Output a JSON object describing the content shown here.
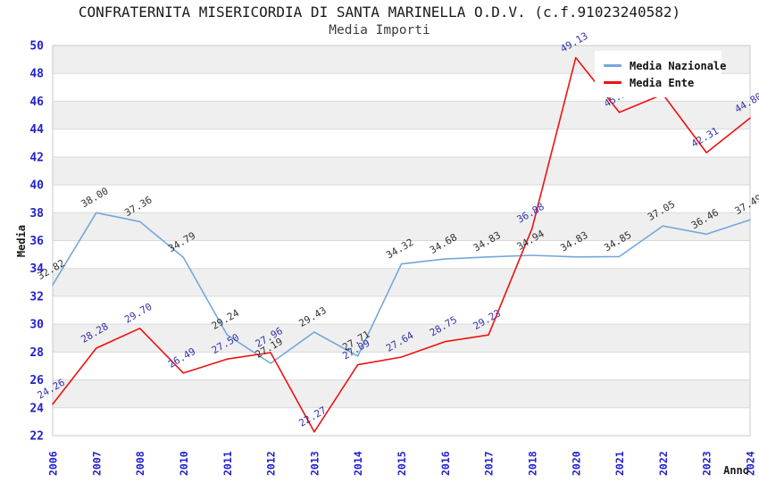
{
  "chart_data": {
    "type": "line",
    "title": "CONFRATERNITA MISERICORDIA DI SANTA MARINELLA O.D.V. (c.f.91023240582)",
    "subtitle": "Media Importi",
    "xlabel": "Anno",
    "ylabel": "Media",
    "ylim": [
      22,
      50
    ],
    "ytick_step": 2,
    "x_categories": [
      "2006",
      "2007",
      "2008",
      "2010",
      "2011",
      "2012",
      "2013",
      "2014",
      "2015",
      "2016",
      "2017",
      "2018",
      "2020",
      "2021",
      "2022",
      "2023",
      "2024"
    ],
    "series": [
      {
        "name": "Media Nazionale",
        "line_color": "#74a7dd",
        "label_color": "#333333",
        "values": [
          32.82,
          38.0,
          37.36,
          34.79,
          29.24,
          27.19,
          29.43,
          27.71,
          34.32,
          34.68,
          34.83,
          34.94,
          34.83,
          34.85,
          37.05,
          36.46,
          37.49
        ],
        "point_labels": [
          "32.82",
          "38.00",
          "37.36",
          "34.79",
          "29.24",
          "27.19",
          "29.43",
          "27.71",
          "34.32",
          "34.68",
          "34.83",
          "34.94",
          "34.83",
          "34.85",
          "37.05",
          "36.46",
          "37.49"
        ]
      },
      {
        "name": "Media Ente",
        "line_color": "#ee1111",
        "label_color": "#3333aa",
        "values": [
          24.26,
          28.28,
          29.7,
          26.49,
          27.5,
          27.96,
          22.27,
          27.09,
          27.64,
          28.75,
          29.23,
          36.88,
          49.13,
          45.2,
          46.5,
          42.31,
          44.8
        ],
        "point_labels": [
          "24.26",
          "28.28",
          "29.70",
          "26.49",
          "27.50",
          "27.96",
          "22.27",
          "27.09",
          "27.64",
          "28.75",
          "29.23",
          "36.88",
          "49.13",
          "45.20",
          null,
          "42.31",
          "44.80"
        ]
      }
    ],
    "legend_position": "top-right",
    "grid": "horizontal gridlines with alternating white/gray bands",
    "colors": {
      "axis_tick_label": "#2222cc",
      "band_gray": "#efefef",
      "band_white": "#ffffff",
      "gridline": "#d9d9d9",
      "plot_border": "#c8c8c8",
      "axis_title": "#1a1a1a",
      "data_label_nazionale": "#333333",
      "data_label_ente": "#3333aa"
    }
  }
}
